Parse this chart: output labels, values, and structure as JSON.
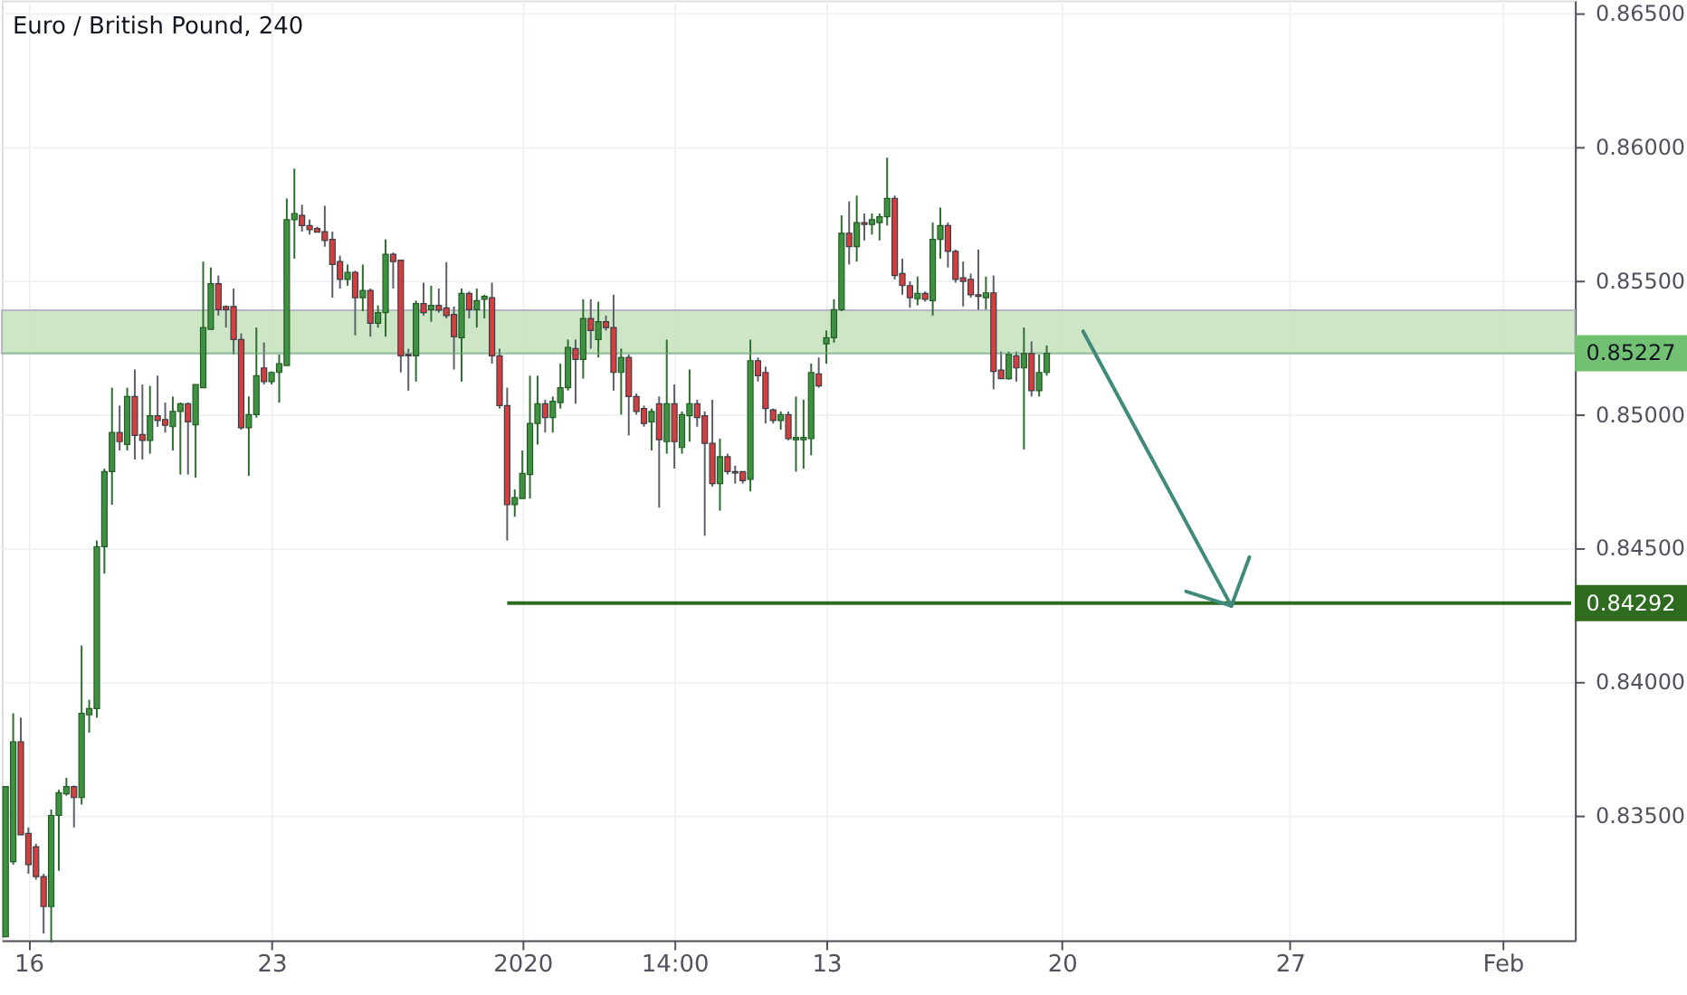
{
  "chart_data": {
    "type": "candlestick",
    "title": "Euro / British Pound, 240",
    "categories": [
      null,
      null,
      null,
      "16",
      null,
      null,
      null,
      null,
      null,
      null,
      null,
      null,
      null,
      null,
      null,
      null,
      null,
      null,
      null,
      null,
      null,
      null,
      null,
      null,
      null,
      null,
      null,
      null,
      null,
      null,
      null,
      null,
      null,
      null,
      null,
      "23",
      null,
      null,
      null,
      null,
      null,
      null,
      null,
      null,
      null,
      null,
      null,
      null,
      null,
      null,
      null,
      null,
      null,
      null,
      null,
      null,
      null,
      null,
      null,
      null,
      null,
      null,
      null,
      null,
      null,
      null,
      null,
      null,
      "2020",
      null,
      null,
      null,
      null,
      null,
      null,
      null,
      null,
      null,
      null,
      null,
      null,
      null,
      null,
      null,
      null,
      null,
      null,
      null,
      "14:00",
      null,
      null,
      null,
      null,
      null,
      null,
      null,
      null,
      null,
      null,
      null,
      null,
      null,
      null,
      null,
      null,
      null,
      null,
      null,
      "13",
      null,
      null,
      null,
      null,
      null,
      null,
      null,
      null,
      null,
      null,
      null,
      null,
      null,
      null,
      null,
      null,
      null,
      null,
      null,
      null,
      null,
      null,
      null,
      null,
      null,
      null,
      null,
      null,
      null,
      null,
      "20",
      null,
      null,
      null,
      null,
      null,
      null,
      null,
      null,
      null,
      null,
      null,
      null,
      null,
      null,
      null,
      null,
      null,
      null,
      null,
      null,
      null,
      null,
      null,
      null,
      null,
      null,
      null,
      null,
      null,
      "27",
      null,
      null,
      null,
      null,
      null,
      null,
      null,
      null,
      null,
      null,
      null,
      null,
      null,
      null,
      null,
      null,
      null,
      null,
      null,
      null,
      null,
      null,
      null,
      null,
      null,
      null,
      null,
      "Feb",
      null,
      null,
      null,
      null,
      null,
      null,
      null,
      null,
      null
    ],
    "ohlc": [
      [
        0.83043,
        0.83605,
        0.83043,
        0.83605
      ],
      [
        0.83324,
        0.83879,
        0.83313,
        0.83773
      ],
      [
        0.83773,
        0.83863,
        0.83425,
        0.83425
      ],
      [
        0.8343,
        0.83452,
        0.83279,
        0.83313
      ],
      [
        0.8338,
        0.83391,
        0.83257,
        0.83268
      ],
      [
        0.83268,
        0.83279,
        0.83055,
        0.83156
      ],
      [
        0.83156,
        0.83519,
        0.83021,
        0.83497
      ],
      [
        0.83497,
        0.83593,
        0.8329,
        0.83582
      ],
      [
        0.83578,
        0.83638,
        0.83571,
        0.83605
      ],
      [
        0.83605,
        0.83609,
        0.83452,
        0.83564
      ],
      [
        0.83564,
        0.84133,
        0.83538,
        0.83879
      ],
      [
        0.83874,
        0.8393,
        0.83807,
        0.83897
      ],
      [
        0.83897,
        0.84526,
        0.83863,
        0.84503
      ],
      [
        0.84503,
        0.84795,
        0.84402,
        0.84784
      ],
      [
        0.84784,
        0.85098,
        0.8466,
        0.8493
      ],
      [
        0.8493,
        0.85031,
        0.84863,
        0.84896
      ],
      [
        0.84885,
        0.85098,
        0.84863,
        0.85065
      ],
      [
        0.85065,
        0.85166,
        0.84829,
        0.84919
      ],
      [
        0.84923,
        0.8511,
        0.84829,
        0.84901
      ],
      [
        0.84901,
        0.85105,
        0.84851,
        0.84993
      ],
      [
        0.84993,
        0.85143,
        0.84952,
        0.84975
      ],
      [
        0.84979,
        0.85042,
        0.8493,
        0.84957
      ],
      [
        0.84952,
        0.85065,
        0.84863,
        0.85009
      ],
      [
        0.85009,
        0.85042,
        0.84773,
        0.85038
      ],
      [
        0.85038,
        0.85042,
        0.84773,
        0.8497
      ],
      [
        0.84959,
        0.8511,
        0.84761,
        0.8511
      ],
      [
        0.85098,
        0.8557,
        0.85098,
        0.85323
      ],
      [
        0.85316,
        0.85548,
        0.85316,
        0.85487
      ],
      [
        0.85487,
        0.85518,
        0.85368,
        0.8539
      ],
      [
        0.85402,
        0.85406,
        0.85323,
        0.8539
      ],
      [
        0.85402,
        0.85469,
        0.85222,
        0.85278
      ],
      [
        0.85278,
        0.85301,
        0.84941,
        0.84948
      ],
      [
        0.84948,
        0.85065,
        0.84768,
        0.84997
      ],
      [
        0.84997,
        0.85323,
        0.84986,
        0.85143
      ],
      [
        0.85172,
        0.85267,
        0.8511,
        0.85121
      ],
      [
        0.85121,
        0.85159,
        0.8511,
        0.85155
      ],
      [
        0.85155,
        0.85222,
        0.85042,
        0.85188
      ],
      [
        0.85181,
        0.85806,
        0.85181,
        0.85727
      ],
      [
        0.85727,
        0.85918,
        0.85581,
        0.8575
      ],
      [
        0.85743,
        0.85783,
        0.85682,
        0.85705
      ],
      [
        0.85705,
        0.85727,
        0.85671,
        0.85689
      ],
      [
        0.85694,
        0.857,
        0.8568,
        0.8568
      ],
      [
        0.85682,
        0.85779,
        0.85626,
        0.85649
      ],
      [
        0.85653,
        0.85682,
        0.85435,
        0.85559
      ],
      [
        0.8557,
        0.85592,
        0.85469,
        0.85503
      ],
      [
        0.85503,
        0.85559,
        0.8548,
        0.8553
      ],
      [
        0.8553,
        0.85536,
        0.85294,
        0.85435
      ],
      [
        0.85435,
        0.85559,
        0.85384,
        0.85462
      ],
      [
        0.85462,
        0.85469,
        0.85289,
        0.85339
      ],
      [
        0.85339,
        0.85406,
        0.85323,
        0.85379
      ],
      [
        0.85379,
        0.85653,
        0.85289,
        0.85597
      ],
      [
        0.85597,
        0.85604,
        0.85469,
        0.8557
      ],
      [
        0.85575,
        0.85575,
        0.85155,
        0.85217
      ],
      [
        0.85222,
        0.85244,
        0.85087,
        0.85217
      ],
      [
        0.85217,
        0.85424,
        0.85121,
        0.85413
      ],
      [
        0.85413,
        0.85491,
        0.85368,
        0.85379
      ],
      [
        0.8539,
        0.8548,
        0.85345,
        0.85406
      ],
      [
        0.85406,
        0.85469,
        0.85379,
        0.85388
      ],
      [
        0.85397,
        0.85568,
        0.85357,
        0.85368
      ],
      [
        0.85372,
        0.85402,
        0.85166,
        0.85289
      ],
      [
        0.85285,
        0.85469,
        0.85121,
        0.85451
      ],
      [
        0.85451,
        0.85458,
        0.85357,
        0.8539
      ],
      [
        0.8539,
        0.85469,
        0.85323,
        0.85424
      ],
      [
        0.85429,
        0.85446,
        0.85357,
        0.8544
      ],
      [
        0.85435,
        0.85491,
        0.85188,
        0.85217
      ],
      [
        0.85217,
        0.85244,
        0.8502,
        0.85031
      ],
      [
        0.85031,
        0.85098,
        0.84526,
        0.8466
      ],
      [
        0.8466,
        0.84717,
        0.84615,
        0.84687
      ],
      [
        0.84683,
        0.84863,
        0.84683,
        0.84777
      ],
      [
        0.84773,
        0.85143,
        0.84683,
        0.84964
      ],
      [
        0.84964,
        0.85143,
        0.84885,
        0.85038
      ],
      [
        0.85038,
        0.85053,
        0.8493,
        0.84986
      ],
      [
        0.84986,
        0.85065,
        0.8493,
        0.85047
      ],
      [
        0.85042,
        0.85188,
        0.8502,
        0.85098
      ],
      [
        0.85098,
        0.85278,
        0.85087,
        0.85249
      ],
      [
        0.85244,
        0.85278,
        0.85038,
        0.85204
      ],
      [
        0.85204,
        0.85429,
        0.85132,
        0.85357
      ],
      [
        0.85357,
        0.85429,
        0.85244,
        0.85312
      ],
      [
        0.85278,
        0.8542,
        0.85211,
        0.85345
      ],
      [
        0.85345,
        0.85368,
        0.85312,
        0.85323
      ],
      [
        0.85323,
        0.85446,
        0.85087,
        0.85155
      ],
      [
        0.85155,
        0.85244,
        0.84997,
        0.85211
      ],
      [
        0.85211,
        0.85222,
        0.84919,
        0.85065
      ],
      [
        0.85065,
        0.85076,
        0.84997,
        0.85009
      ],
      [
        0.8502,
        0.85031,
        0.84952,
        0.84964
      ],
      [
        0.8497,
        0.8502,
        0.84863,
        0.85009
      ],
      [
        0.85038,
        0.85065,
        0.84649,
        0.84903
      ],
      [
        0.84896,
        0.85278,
        0.84851,
        0.85038
      ],
      [
        0.85038,
        0.8511,
        0.84795,
        0.84896
      ],
      [
        0.84874,
        0.85009,
        0.84851,
        0.84997
      ],
      [
        0.84993,
        0.85166,
        0.84896,
        0.85038
      ],
      [
        0.85038,
        0.85053,
        0.84952,
        0.84986
      ],
      [
        0.84993,
        0.85009,
        0.84544,
        0.8489
      ],
      [
        0.8489,
        0.85053,
        0.84728,
        0.84739
      ],
      [
        0.84739,
        0.84907,
        0.84638,
        0.8484
      ],
      [
        0.8484,
        0.84851,
        0.84773,
        0.84784
      ],
      [
        0.84784,
        0.84806,
        0.84739,
        0.84779
      ],
      [
        0.84784,
        0.84784,
        0.84739,
        0.8475
      ],
      [
        0.84755,
        0.85278,
        0.8471,
        0.85199
      ],
      [
        0.85199,
        0.85211,
        0.85121,
        0.85143
      ],
      [
        0.85155,
        0.85177,
        0.84964,
        0.8502
      ],
      [
        0.85015,
        0.8502,
        0.84964,
        0.84975
      ],
      [
        0.84975,
        0.85009,
        0.84941,
        0.84997
      ],
      [
        0.84997,
        0.85009,
        0.84901,
        0.84907
      ],
      [
        0.84903,
        0.85065,
        0.84784,
        0.84912
      ],
      [
        0.84903,
        0.85053,
        0.84795,
        0.84912
      ],
      [
        0.84907,
        0.85188,
        0.84845,
        0.85155
      ],
      [
        0.8515,
        0.85211,
        0.85098,
        0.85105
      ],
      [
        0.85262,
        0.85312,
        0.85188,
        0.85285
      ],
      [
        0.85285,
        0.85429,
        0.85267,
        0.8539
      ],
      [
        0.8539,
        0.85743,
        0.85384,
        0.85676
      ],
      [
        0.85676,
        0.85795,
        0.85559,
        0.85626
      ],
      [
        0.85626,
        0.85817,
        0.8557,
        0.85716
      ],
      [
        0.85716,
        0.8575,
        0.85649,
        0.85709
      ],
      [
        0.85709,
        0.8575,
        0.85671,
        0.85727
      ],
      [
        0.85716,
        0.8575,
        0.85649,
        0.85738
      ],
      [
        0.85738,
        0.85959,
        0.85705,
        0.85806
      ],
      [
        0.85806,
        0.85817,
        0.85503,
        0.85518
      ],
      [
        0.85525,
        0.85581,
        0.85446,
        0.8548
      ],
      [
        0.8548,
        0.85496,
        0.85397,
        0.85435
      ],
      [
        0.85431,
        0.85514,
        0.85406,
        0.85451
      ],
      [
        0.85451,
        0.85458,
        0.8542,
        0.85429
      ],
      [
        0.85424,
        0.85716,
        0.85368,
        0.85653
      ],
      [
        0.85653,
        0.85772,
        0.85581,
        0.85705
      ],
      [
        0.85705,
        0.85716,
        0.85548,
        0.85608
      ],
      [
        0.85608,
        0.85615,
        0.85491,
        0.85503
      ],
      [
        0.85509,
        0.8557,
        0.85402,
        0.85496
      ],
      [
        0.85503,
        0.85525,
        0.85435,
        0.85446
      ],
      [
        0.85446,
        0.85615,
        0.8539,
        0.8544
      ],
      [
        0.85435,
        0.85514,
        0.8539,
        0.85453
      ],
      [
        0.85453,
        0.85518,
        0.85092,
        0.85159
      ],
      [
        0.85164,
        0.85233,
        0.85132,
        0.85132
      ],
      [
        0.85132,
        0.85233,
        0.85128,
        0.85222
      ],
      [
        0.85217,
        0.85233,
        0.85121,
        0.85172
      ],
      [
        0.85172,
        0.85323,
        0.84867,
        0.85226
      ],
      [
        0.85226,
        0.85271,
        0.85065,
        0.85087
      ],
      [
        0.85087,
        0.85222,
        0.85065,
        0.85155
      ],
      [
        0.85155,
        0.85256,
        0.85143,
        0.85227
      ],
      null,
      null,
      null,
      null,
      null,
      null,
      null,
      null,
      null,
      null,
      null,
      null,
      null,
      null,
      null,
      null,
      null,
      null,
      null,
      null,
      null,
      null,
      null,
      null,
      null,
      null,
      null,
      null,
      null,
      null,
      null,
      null,
      null,
      null,
      null,
      null,
      null,
      null,
      null,
      null,
      null,
      null,
      null,
      null,
      null,
      null,
      null,
      null,
      null,
      null,
      null,
      null,
      null,
      null,
      null,
      null,
      null,
      null,
      null,
      null,
      null,
      null,
      null,
      null,
      null,
      null,
      null,
      null,
      null
    ],
    "ylim": [
      0.8303,
      0.86547
    ],
    "yticks": [
      {
        "value": 0.835,
        "label": "0.83500"
      },
      {
        "value": 0.84,
        "label": "0.84000"
      },
      {
        "value": 0.845,
        "label": "0.84500"
      },
      {
        "value": 0.85,
        "label": "0.85000"
      },
      {
        "value": 0.855,
        "label": "0.85500"
      },
      {
        "value": 0.86,
        "label": "0.86000"
      },
      {
        "value": 0.865,
        "label": "0.86500"
      }
    ],
    "grid": true,
    "bands": [
      {
        "axis": "y",
        "from": 0.85226,
        "to": 0.85388,
        "color": "#c8e4c0"
      }
    ],
    "ref_lines": [
      {
        "axis": "y",
        "value": 0.85227,
        "label": "0.85227",
        "color": "#72c072"
      }
    ],
    "series": [
      {
        "type": "line",
        "name": "0.84292",
        "color": "#2e6b1e",
        "values": [
          null,
          null,
          null,
          null,
          null,
          null,
          null,
          null,
          null,
          null,
          null,
          null,
          null,
          null,
          null,
          null,
          null,
          null,
          null,
          null,
          null,
          null,
          null,
          null,
          null,
          null,
          null,
          null,
          null,
          null,
          null,
          null,
          null,
          null,
          null,
          null,
          null,
          null,
          null,
          null,
          null,
          null,
          null,
          null,
          null,
          null,
          null,
          null,
          null,
          null,
          null,
          null,
          null,
          null,
          null,
          null,
          null,
          null,
          null,
          null,
          null,
          null,
          null,
          null,
          null,
          null,
          0.84292,
          0.84292,
          0.84292,
          0.84292,
          0.84292,
          0.84292,
          0.84292,
          0.84292,
          0.84292,
          0.84292,
          0.84292,
          0.84292,
          0.84292,
          0.84292,
          0.84292,
          0.84292,
          0.84292,
          0.84292,
          0.84292,
          0.84292,
          0.84292,
          0.84292,
          0.84292,
          0.84292,
          0.84292,
          0.84292,
          0.84292,
          0.84292,
          0.84292,
          0.84292,
          0.84292,
          0.84292,
          0.84292,
          0.84292,
          0.84292,
          0.84292,
          0.84292,
          0.84292,
          0.84292,
          0.84292,
          0.84292,
          0.84292,
          0.84292,
          0.84292,
          0.84292,
          0.84292,
          0.84292,
          0.84292,
          0.84292,
          0.84292,
          0.84292,
          0.84292,
          0.84292,
          0.84292,
          0.84292,
          0.84292,
          0.84292,
          0.84292,
          0.84292,
          0.84292,
          0.84292,
          0.84292,
          0.84292,
          0.84292,
          0.84292,
          0.84292,
          0.84292,
          0.84292,
          0.84292,
          0.84292,
          0.84292,
          0.84292,
          0.84292,
          0.84292,
          0.84292,
          0.84292,
          0.84292,
          0.84292,
          0.84292,
          0.84292,
          0.84292,
          0.84292,
          0.84292,
          0.84292,
          0.84292,
          0.84292,
          0.84292,
          0.84292,
          0.84292,
          0.84292,
          0.84292,
          0.84292,
          0.84292,
          0.84292,
          0.84292,
          0.84292,
          0.84292,
          0.84292,
          0.84292,
          0.84292,
          0.84292,
          0.84292,
          0.84292,
          0.84292,
          0.84292,
          0.84292,
          0.84292,
          0.84292,
          0.84292,
          0.84292,
          0.84292,
          0.84292,
          0.84292,
          0.84292,
          0.84292,
          0.84292,
          0.84292,
          0.84292,
          0.84292,
          0.84292,
          0.84292,
          0.84292,
          0.84292,
          0.84292,
          0.84292,
          0.84292,
          0.84292,
          0.84292,
          0.84292,
          0.84292,
          0.84292,
          0.84292,
          0.84292,
          0.84292,
          0.84292,
          0.84292,
          0.84292,
          0.84292,
          0.84292,
          0.84292,
          0.84292
        ]
      }
    ]
  }
}
